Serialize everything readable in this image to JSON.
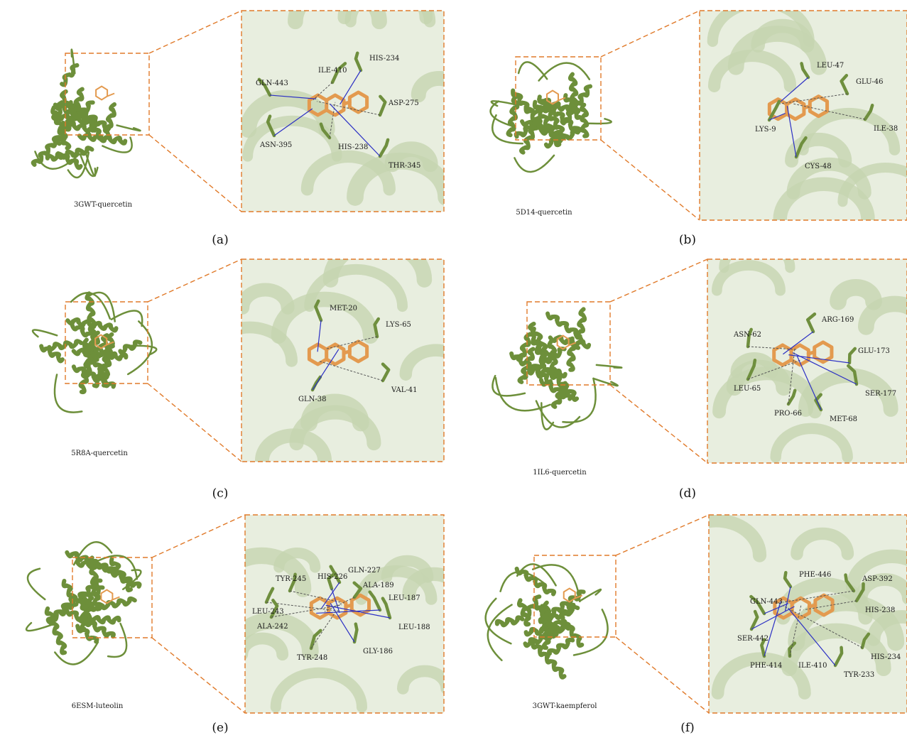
{
  "panels": [
    {
      "id": "a",
      "letter": "(a)",
      "caption": "3GWT-quercetin",
      "residues": [
        "GLN-443",
        "ILE-410",
        "HIS-234",
        "ASP-275",
        "ASN-395",
        "HIS-238",
        "THR-345"
      ]
    },
    {
      "id": "b",
      "letter": "(b)",
      "caption": "5D14-quercetin",
      "residues": [
        "LEU-47",
        "GLU-46",
        "LYS-9",
        "ILE-38",
        "CYS-48"
      ]
    },
    {
      "id": "c",
      "letter": "(c)",
      "caption": "5R8A-quercetin",
      "residues": [
        "MET-20",
        "LYS-65",
        "GLN-38",
        "VAL-41"
      ]
    },
    {
      "id": "d",
      "letter": "(d)",
      "caption": "1IL6-quercetin",
      "residues": [
        "ARG-169",
        "ASN-62",
        "GLU-173",
        "LEU-65",
        "SER-177",
        "PRO-66",
        "MET-68"
      ]
    },
    {
      "id": "e",
      "letter": "(e)",
      "caption": "6ESM-luteolin",
      "residues": [
        "GLN-227",
        "TYR-245",
        "HIS-226",
        "ALA-189",
        "LEU-187",
        "LEU-243",
        "LEU-188",
        "ALA-242",
        "GLY-186",
        "TYR-248"
      ]
    },
    {
      "id": "f",
      "letter": "(f)",
      "caption": "3GWT-kaempferol",
      "residues": [
        "PHE-446",
        "ASP-392",
        "GLN-443",
        "HIS-238",
        "SER-442",
        "HIS-234",
        "PHE-414",
        "ILE-410",
        "TYR-233"
      ]
    }
  ],
  "colors": {
    "protein": "#6d8f3a",
    "ligand": "#e39a4f",
    "hbond": "#2b2fc4",
    "dashed_box": "#e07a2a",
    "background_zoom": "#e8eedf"
  }
}
